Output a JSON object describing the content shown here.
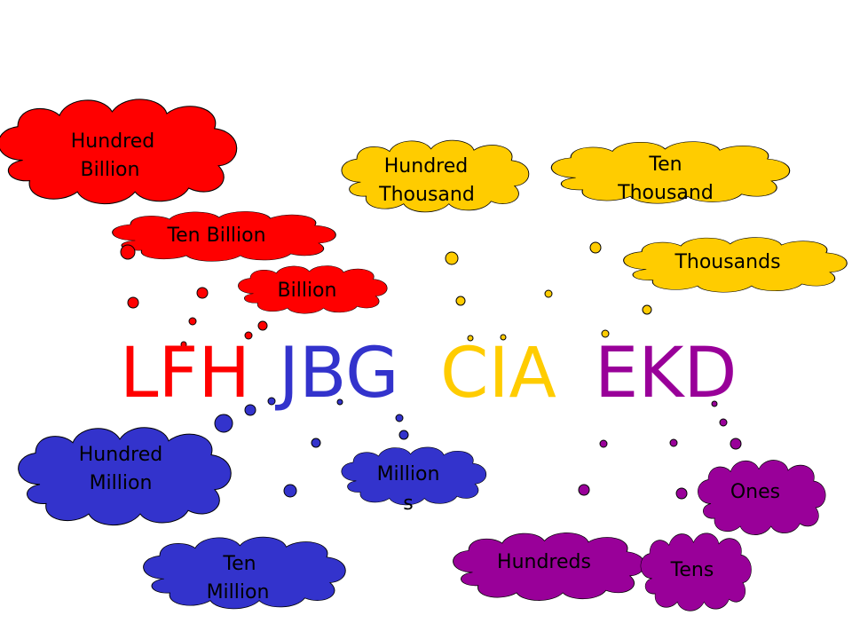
{
  "colors": {
    "red": "#ff0000",
    "blue": "#3333cc",
    "yellow": "#ffcc00",
    "purple": "#990099"
  },
  "headline": {
    "group1": "LFH",
    "group2": "JBG",
    "group3": "CIA",
    "group4": "EKD"
  },
  "clouds": {
    "hundred_billion": [
      "Hundred",
      "Billion"
    ],
    "ten_billion": [
      "Ten Billion"
    ],
    "billion": [
      "Billion"
    ],
    "hundred_thousand": [
      "Hundred",
      "Thousand"
    ],
    "ten_thousand": [
      "Ten",
      "Thousand"
    ],
    "thousands": [
      "Thousands"
    ],
    "hundred_million": [
      "Hundred",
      "Million"
    ],
    "ten_million": [
      "Ten",
      "Million"
    ],
    "millions": [
      "Million",
      "s"
    ],
    "hundreds": [
      "Hundreds"
    ],
    "tens": [
      "Tens"
    ],
    "ones": [
      "Ones"
    ]
  }
}
